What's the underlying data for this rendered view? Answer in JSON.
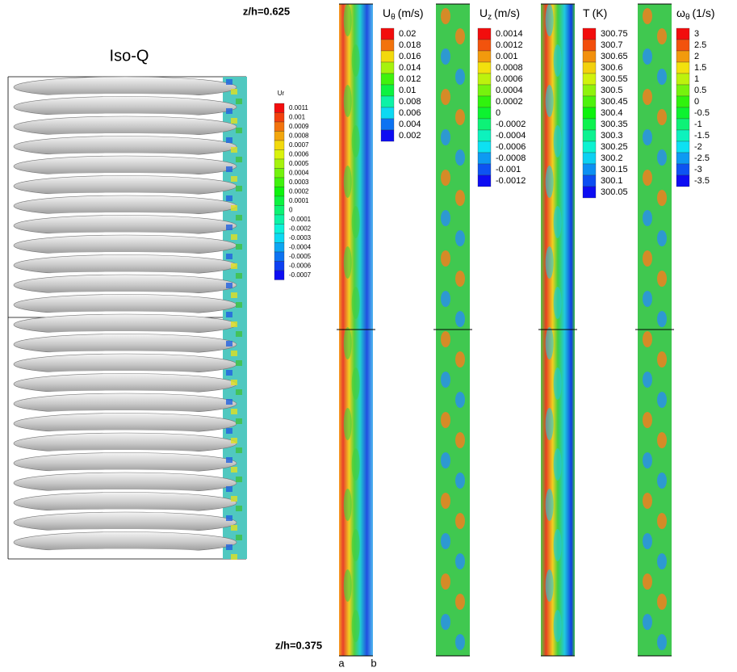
{
  "iso_q": {
    "title": "Iso-Q",
    "legend": {
      "title": "Ur",
      "labels": [
        "0.0011",
        "0.001",
        "0.0009",
        "0.0008",
        "0.0007",
        "0.0006",
        "0.0005",
        "0.0004",
        "0.0003",
        "0.0002",
        "0.0001",
        "0",
        "-0.0001",
        "-0.0002",
        "-0.0003",
        "-0.0004",
        "-0.0005",
        "-0.0006",
        "-0.0007"
      ]
    }
  },
  "annotations": {
    "z_top": "z/h=0.625",
    "z_bottom": "z/h=0.375",
    "a": "a",
    "b": "b"
  },
  "panels": [
    {
      "symbol": "U",
      "subscript": "θ",
      "unit": "(m/s)",
      "labels": [
        "0.02",
        "0.018",
        "0.016",
        "0.014",
        "0.012",
        "0.01",
        "0.008",
        "0.006",
        "0.004",
        "0.002"
      ]
    },
    {
      "symbol": "U",
      "subscript": "z",
      "unit": "(m/s)",
      "labels": [
        "0.0014",
        "0.0012",
        "0.001",
        "0.0008",
        "0.0006",
        "0.0004",
        "0.0002",
        "0",
        "-0.0002",
        "-0.0004",
        "-0.0006",
        "-0.0008",
        "-0.001",
        "-0.0012"
      ]
    },
    {
      "symbol": "T",
      "unit": "(K)",
      "labels": [
        "300.75",
        "300.7",
        "300.65",
        "300.6",
        "300.55",
        "300.5",
        "300.45",
        "300.4",
        "300.35",
        "300.3",
        "300.25",
        "300.2",
        "300.15",
        "300.1",
        "300.05"
      ]
    },
    {
      "symbol": "ω",
      "subscript": "θ",
      "unit": "(1/s)",
      "labels": [
        "3",
        "2.5",
        "2",
        "1.5",
        "1",
        "0.5",
        "0",
        "-0.5",
        "-1",
        "-1.5",
        "-2",
        "-2.5",
        "-3",
        "-3.5"
      ]
    }
  ]
}
